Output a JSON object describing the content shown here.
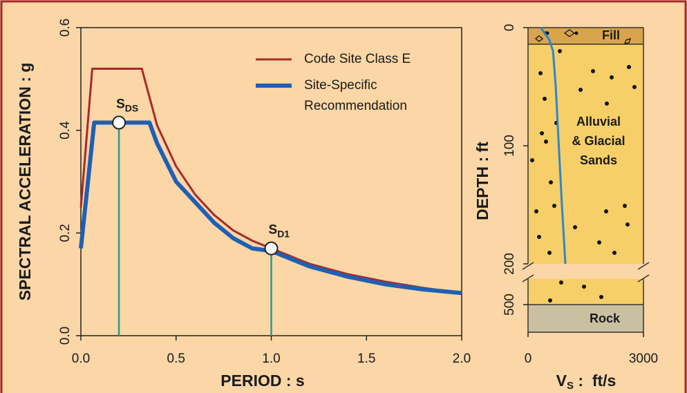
{
  "chart_data": [
    {
      "type": "line",
      "xlabel": "PERIOD : s",
      "ylabel": "SPECTRAL  ACCELERATION : g",
      "xlim": [
        0,
        2.0
      ],
      "ylim": [
        0,
        0.6
      ],
      "xticks": [
        {
          "value": 0,
          "label": "0.0"
        },
        {
          "value": 0.5,
          "label": "0.5"
        },
        {
          "value": 1.0,
          "label": "1.0"
        },
        {
          "value": 1.5,
          "label": "1.5"
        },
        {
          "value": 2.0,
          "label": "2.0"
        }
      ],
      "yticks": [
        {
          "value": 0,
          "label": "0.0"
        },
        {
          "value": 0.2,
          "label": "0.2"
        },
        {
          "value": 0.4,
          "label": "0.4"
        },
        {
          "value": 0.6,
          "label": "0.6"
        }
      ],
      "series": [
        {
          "name": "Code Site Class E",
          "color": "#a8282a",
          "width": 3,
          "x": [
            0,
            0.06,
            0.32,
            0.4,
            0.5,
            0.6,
            0.7,
            0.8,
            0.9,
            1.0,
            1.2,
            1.4,
            1.6,
            1.8,
            2.0
          ],
          "values": [
            0.25,
            0.52,
            0.52,
            0.41,
            0.33,
            0.275,
            0.235,
            0.205,
            0.185,
            0.17,
            0.14,
            0.12,
            0.105,
            0.093,
            0.083
          ]
        },
        {
          "name": "Site-Specific\nRecommendation",
          "color": "#1f5fb4",
          "width": 6,
          "x": [
            0,
            0.07,
            0.36,
            0.4,
            0.5,
            0.6,
            0.7,
            0.8,
            0.9,
            1.0,
            1.2,
            1.4,
            1.6,
            1.8,
            2.0
          ],
          "values": [
            0.17,
            0.415,
            0.415,
            0.375,
            0.3,
            0.26,
            0.22,
            0.19,
            0.17,
            0.165,
            0.135,
            0.115,
            0.1,
            0.09,
            0.083
          ]
        }
      ],
      "annotations": [
        {
          "x": 0.2,
          "y": 0.415,
          "text": "S",
          "sub": "DS"
        },
        {
          "x": 1.0,
          "y": 0.17,
          "text": "S",
          "sub": "D1"
        }
      ],
      "annotation_color": "#2a9a8a"
    },
    {
      "type": "profile",
      "ylabel": "DEPTH : ft",
      "xlabel": {
        "main": "V",
        "sub": "S",
        "tail": " :  ft/s"
      },
      "xlim": [
        0,
        3000
      ],
      "ylim": [
        0,
        200
      ],
      "y_inverted": true,
      "xticks": [
        0,
        3000
      ],
      "yticks": [
        0,
        100,
        200
      ],
      "lower_yticks": [
        500
      ],
      "x": [
        330,
        550,
        650,
        720,
        800,
        880,
        970
      ],
      "values": [
        0,
        10,
        20,
        50,
        100,
        150,
        200
      ],
      "color": "#2f86c8",
      "layers": [
        "Fill",
        "Alluvial\n& Glacial\nSands",
        "Rock"
      ]
    }
  ]
}
